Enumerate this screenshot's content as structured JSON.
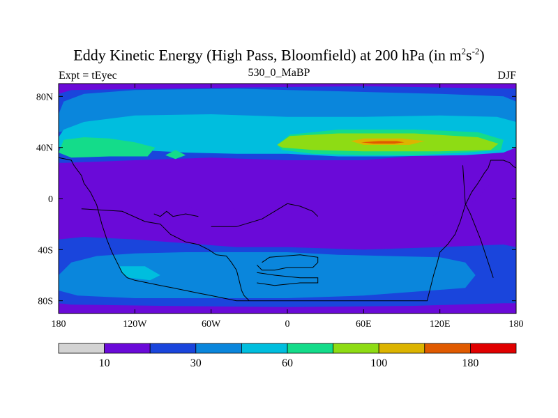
{
  "chart_data": {
    "type": "heatmap",
    "title": "Eddy Kinetic Energy (High Pass, Bloomfield) at 200 hPa (in m",
    "title_units": [
      "2",
      "s",
      "-2",
      ")"
    ],
    "subtitle_left": "Expt = tEyec",
    "subtitle_center": "530_0_MaBP",
    "subtitle_right": "DJF",
    "xlim": [
      -180,
      180
    ],
    "ylim": [
      -90,
      90
    ],
    "x_ticks": [
      {
        "value": -180,
        "label": "180"
      },
      {
        "value": -120,
        "label": "120W"
      },
      {
        "value": -60,
        "label": "60W"
      },
      {
        "value": 0,
        "label": "0"
      },
      {
        "value": 60,
        "label": "60E"
      },
      {
        "value": 120,
        "label": "120E"
      },
      {
        "value": 180,
        "label": "180"
      }
    ],
    "y_ticks": [
      {
        "value": 80,
        "label": "80N"
      },
      {
        "value": 40,
        "label": "40N"
      },
      {
        "value": 0,
        "label": "0"
      },
      {
        "value": -40,
        "label": "40S"
      },
      {
        "value": -80,
        "label": "80S"
      }
    ],
    "colorbar": {
      "colors": [
        "#d3d3d3",
        "#6a0ad8",
        "#1a45dc",
        "#0a86dc",
        "#00bede",
        "#14dc8a",
        "#8edc14",
        "#dcb400",
        "#e05a00",
        "#e00000"
      ],
      "labels": [
        {
          "boundary": 1,
          "text": "10"
        },
        {
          "boundary": 3,
          "text": "30"
        },
        {
          "boundary": 5,
          "text": "60"
        },
        {
          "boundary": 7,
          "text": "100"
        },
        {
          "boundary": 9,
          "text": "180"
        }
      ]
    },
    "regions": [
      {
        "level": 2,
        "points": [
          [
            -180,
            82
          ],
          [
            -170,
            85
          ],
          [
            -30,
            87
          ],
          [
            60,
            88
          ],
          [
            180,
            86
          ],
          [
            180,
            42
          ],
          [
            170,
            40
          ],
          [
            120,
            35
          ],
          [
            60,
            30
          ],
          [
            0,
            30
          ],
          [
            -60,
            32
          ],
          [
            -120,
            30
          ],
          [
            -175,
            28
          ],
          [
            -180,
            28
          ]
        ]
      },
      {
        "level": 3,
        "points": [
          [
            -180,
            66
          ],
          [
            -176,
            76
          ],
          [
            -160,
            82
          ],
          [
            -120,
            85
          ],
          [
            -40,
            86
          ],
          [
            40,
            84
          ],
          [
            120,
            82
          ],
          [
            170,
            80
          ],
          [
            180,
            76
          ],
          [
            180,
            58
          ],
          [
            170,
            53
          ],
          [
            150,
            50
          ],
          [
            100,
            52
          ],
          [
            60,
            54
          ],
          [
            0,
            56
          ],
          [
            -60,
            56
          ],
          [
            -120,
            55
          ],
          [
            -170,
            54
          ],
          [
            -180,
            52
          ]
        ]
      },
      {
        "level": 4,
        "points": [
          [
            -180,
            48
          ],
          [
            -176,
            54
          ],
          [
            -160,
            60
          ],
          [
            -120,
            65
          ],
          [
            -60,
            66
          ],
          [
            0,
            64
          ],
          [
            60,
            64
          ],
          [
            120,
            65
          ],
          [
            165,
            64
          ],
          [
            180,
            60
          ],
          [
            180,
            40
          ],
          [
            170,
            36
          ],
          [
            140,
            34
          ],
          [
            80,
            33
          ],
          [
            40,
            33
          ],
          [
            0,
            35
          ],
          [
            -40,
            35
          ],
          [
            -80,
            36
          ],
          [
            -120,
            38
          ],
          [
            -170,
            38
          ],
          [
            -180,
            40
          ]
        ]
      },
      {
        "level": 5,
        "points": [
          [
            -180,
            36
          ],
          [
            -176,
            46
          ],
          [
            -160,
            48
          ],
          [
            -140,
            47
          ],
          [
            -120,
            44
          ],
          [
            -104,
            40
          ],
          [
            -110,
            33
          ],
          [
            -140,
            33
          ],
          [
            -170,
            32
          ]
        ]
      },
      {
        "level": 5,
        "points": [
          [
            -96,
            34
          ],
          [
            -88,
            38
          ],
          [
            -80,
            34
          ],
          [
            -88,
            31
          ]
        ]
      },
      {
        "level": 5,
        "points": [
          [
            -8,
            42
          ],
          [
            2,
            50
          ],
          [
            40,
            54
          ],
          [
            100,
            54
          ],
          [
            150,
            52
          ],
          [
            170,
            46
          ],
          [
            168,
            38
          ],
          [
            140,
            36
          ],
          [
            100,
            34
          ],
          [
            60,
            34
          ],
          [
            20,
            35
          ],
          [
            -4,
            38
          ]
        ]
      },
      {
        "level": 6,
        "points": [
          [
            -8,
            42
          ],
          [
            2,
            49
          ],
          [
            40,
            51
          ],
          [
            100,
            51
          ],
          [
            150,
            48
          ],
          [
            166,
            43
          ],
          [
            160,
            38
          ],
          [
            120,
            37
          ],
          [
            60,
            37
          ],
          [
            20,
            38
          ],
          [
            -4,
            40
          ]
        ]
      },
      {
        "level": 7,
        "points": [
          [
            50,
            45
          ],
          [
            60,
            47
          ],
          [
            90,
            47
          ],
          [
            108,
            45
          ],
          [
            96,
            42
          ],
          [
            60,
            42
          ]
        ]
      },
      {
        "level": 8,
        "points": [
          [
            58,
            44
          ],
          [
            72,
            45
          ],
          [
            86,
            45
          ],
          [
            92,
            44
          ],
          [
            84,
            43
          ],
          [
            68,
            43
          ]
        ]
      },
      {
        "level": 2,
        "points": [
          [
            -180,
            -32
          ],
          [
            -160,
            -30
          ],
          [
            -120,
            -32
          ],
          [
            -80,
            -35
          ],
          [
            -40,
            -38
          ],
          [
            0,
            -38
          ],
          [
            60,
            -40
          ],
          [
            120,
            -38
          ],
          [
            170,
            -36
          ],
          [
            180,
            -38
          ],
          [
            180,
            -82
          ],
          [
            170,
            -82
          ],
          [
            100,
            -84
          ],
          [
            0,
            -85
          ],
          [
            -100,
            -84
          ],
          [
            -170,
            -83
          ],
          [
            -180,
            -82
          ]
        ]
      },
      {
        "level": 3,
        "points": [
          [
            -180,
            -60
          ],
          [
            -170,
            -50
          ],
          [
            -150,
            -45
          ],
          [
            -120,
            -43
          ],
          [
            -80,
            -42
          ],
          [
            -40,
            -42
          ],
          [
            0,
            -42
          ],
          [
            40,
            -44
          ],
          [
            80,
            -45
          ],
          [
            120,
            -46
          ],
          [
            140,
            -50
          ],
          [
            148,
            -60
          ],
          [
            140,
            -70
          ],
          [
            100,
            -73
          ],
          [
            60,
            -76
          ],
          [
            0,
            -78
          ],
          [
            -60,
            -78
          ],
          [
            -120,
            -78
          ],
          [
            -165,
            -76
          ],
          [
            -180,
            -72
          ]
        ]
      },
      {
        "level": 4,
        "points": [
          [
            -132,
            -53
          ],
          [
            -130,
            -59
          ],
          [
            -124,
            -62
          ],
          [
            -108,
            -64
          ],
          [
            -100,
            -60
          ],
          [
            -112,
            -53
          ]
        ]
      },
      {
        "level": 1,
        "points": [
          [
            -178,
            -8
          ],
          [
            -158,
            -12
          ],
          [
            -110,
            -16
          ],
          [
            -84,
            -20
          ],
          [
            -70,
            -18
          ],
          [
            -68,
            -10
          ],
          [
            -80,
            -5
          ],
          [
            -110,
            -3
          ],
          [
            -150,
            -2
          ],
          [
            -178,
            -2
          ]
        ]
      },
      {
        "level": 1,
        "points": [
          [
            -180,
            14
          ],
          [
            -178,
            11
          ],
          [
            -180,
            9
          ]
        ]
      },
      {
        "level": 1,
        "points": [
          [
            -120,
            -13
          ],
          [
            -112,
            -13
          ],
          [
            -116,
            -15
          ]
        ]
      },
      {
        "level": 1,
        "points": [
          [
            -44,
            -7
          ],
          [
            -36,
            -12
          ],
          [
            -10,
            -14
          ],
          [
            0,
            -13
          ],
          [
            16,
            -6
          ],
          [
            10,
            -3
          ],
          [
            -10,
            -4
          ],
          [
            -36,
            -6
          ]
        ]
      },
      {
        "level": 1,
        "points": [
          [
            108,
            -18
          ],
          [
            140,
            -22
          ],
          [
            172,
            -24
          ],
          [
            180,
            -22
          ],
          [
            180,
            10
          ],
          [
            172,
            13
          ],
          [
            162,
            13
          ],
          [
            156,
            8
          ],
          [
            150,
            0
          ],
          [
            140,
            -6
          ],
          [
            120,
            -10
          ]
        ]
      }
    ],
    "land_outline": [
      [
        [
          -180,
          32
        ],
        [
          -170,
          30
        ],
        [
          -168,
          26
        ],
        [
          -165,
          22
        ],
        [
          -162,
          18
        ],
        [
          -160,
          12
        ],
        [
          -155,
          5
        ],
        [
          -150,
          -5
        ],
        [
          -146,
          -20
        ],
        [
          -142,
          -32
        ],
        [
          -138,
          -42
        ],
        [
          -134,
          -50
        ],
        [
          -130,
          -58
        ],
        [
          -126,
          -62
        ],
        [
          -120,
          -64
        ],
        [
          -110,
          -66
        ],
        [
          -100,
          -68
        ],
        [
          -90,
          -70
        ],
        [
          -80,
          -72
        ],
        [
          -70,
          -74
        ],
        [
          -60,
          -76
        ],
        [
          -50,
          -78
        ],
        [
          -40,
          -80
        ],
        [
          0,
          -80
        ],
        [
          40,
          -80
        ],
        [
          80,
          -80
        ],
        [
          110,
          -80
        ],
        [
          112,
          -72
        ],
        [
          115,
          -60
        ],
        [
          118,
          -50
        ],
        [
          120,
          -42
        ],
        [
          126,
          -36
        ],
        [
          132,
          -28
        ],
        [
          136,
          -18
        ],
        [
          140,
          -5
        ],
        [
          145,
          5
        ],
        [
          150,
          12
        ],
        [
          155,
          20
        ],
        [
          158,
          24
        ],
        [
          160,
          30
        ],
        [
          170,
          30
        ],
        [
          175,
          28
        ],
        [
          178,
          25
        ],
        [
          180,
          24
        ]
      ],
      [
        [
          -162,
          -8
        ],
        [
          -130,
          -10
        ],
        [
          -112,
          -18
        ],
        [
          -100,
          -20
        ],
        [
          -92,
          -28
        ],
        [
          -80,
          -34
        ],
        [
          -70,
          -36
        ],
        [
          -62,
          -40
        ],
        [
          -56,
          -44
        ],
        [
          -48,
          -45
        ],
        [
          -44,
          -50
        ],
        [
          -40,
          -56
        ],
        [
          -38,
          -64
        ],
        [
          -36,
          -72
        ],
        [
          -34,
          -76
        ],
        [
          -30,
          -80
        ]
      ],
      [
        [
          -60,
          -22
        ],
        [
          -40,
          -22
        ],
        [
          -20,
          -16
        ],
        [
          -10,
          -10
        ],
        [
          0,
          -4
        ],
        [
          10,
          -6
        ],
        [
          20,
          -10
        ],
        [
          24,
          -14
        ]
      ],
      [
        [
          -20,
          -50
        ],
        [
          -14,
          -46
        ],
        [
          10,
          -44
        ],
        [
          24,
          -46
        ],
        [
          24,
          -50
        ],
        [
          20,
          -54
        ],
        [
          0,
          -54
        ],
        [
          -10,
          -56
        ],
        [
          -20,
          -56
        ],
        [
          -24,
          -52
        ]
      ],
      [
        [
          -24,
          -58
        ],
        [
          -10,
          -60
        ],
        [
          10,
          -62
        ],
        [
          24,
          -62
        ],
        [
          24,
          -66
        ],
        [
          10,
          -66
        ],
        [
          -10,
          -68
        ],
        [
          -24,
          -66
        ]
      ],
      [
        [
          138,
          26
        ],
        [
          140,
          -4
        ],
        [
          144,
          -12
        ],
        [
          148,
          -22
        ],
        [
          152,
          -32
        ],
        [
          156,
          -44
        ],
        [
          160,
          -56
        ],
        [
          162,
          -62
        ]
      ],
      [
        [
          -105,
          -12
        ],
        [
          -100,
          -14
        ],
        [
          -95,
          -10
        ],
        [
          -90,
          -14
        ],
        [
          -80,
          -12
        ],
        [
          -70,
          -14
        ]
      ]
    ]
  }
}
